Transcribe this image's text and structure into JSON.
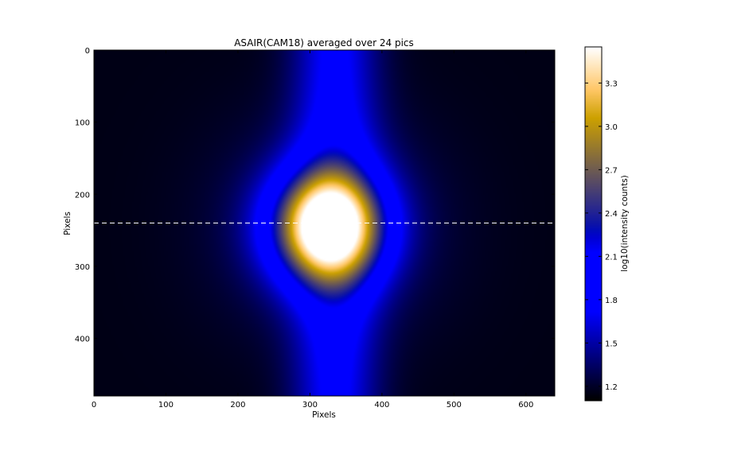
{
  "chart_data": {
    "type": "heatmap",
    "title": "ASAIR(CAM18) averaged over 24 pics",
    "xlabel": "Pixels",
    "ylabel": "Pixels",
    "xlim": [
      0,
      640
    ],
    "ylim": [
      480,
      0
    ],
    "x_ticks": [
      0,
      100,
      200,
      300,
      400,
      500,
      600
    ],
    "y_ticks": [
      0,
      100,
      200,
      300,
      400
    ],
    "colormap": "gnuplot2",
    "colorbar": {
      "label": "log10(intensity counts)",
      "range": [
        1.1,
        3.55
      ],
      "ticks": [
        "1.2",
        "1.5",
        "1.8",
        "2.1",
        "2.4",
        "2.7",
        "3.0",
        "3.3"
      ]
    },
    "features": {
      "spot_center_x": 325,
      "spot_center_y": 245,
      "spot_peak": 3.5,
      "vertical_band_center_x": 335,
      "background_level": 1.15
    },
    "reference_line": {
      "y": 240,
      "style": "dashed",
      "color": "#ffffff"
    }
  }
}
